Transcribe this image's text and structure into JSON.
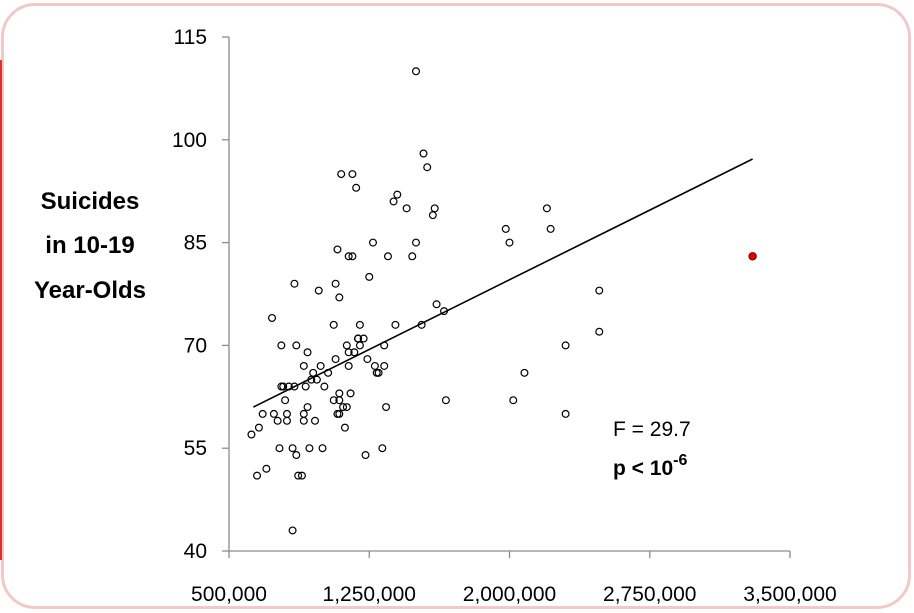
{
  "chart_data": {
    "type": "scatter",
    "ylabel_lines": [
      "Suicides",
      "in 10-19",
      "Year-Olds"
    ],
    "xlabel": "",
    "xlim": [
      500000,
      3500000
    ],
    "ylim": [
      40,
      115
    ],
    "x_ticks": [
      500000,
      1250000,
      2000000,
      2750000,
      3500000
    ],
    "x_tick_labels": [
      "500,000",
      "1,250,000",
      "2,000,000",
      "2,750,000",
      "3,500,000"
    ],
    "y_ticks": [
      40,
      55,
      70,
      85,
      100,
      115
    ],
    "y_tick_labels": [
      "40",
      "55",
      "70",
      "85",
      "100",
      "115"
    ],
    "grid": false,
    "annotation": {
      "f_stat": "F = 29.7",
      "p_prefix": "p < 10",
      "p_exponent": "-6"
    },
    "trendline": {
      "x": [
        630000,
        3300000
      ],
      "y": [
        61,
        97.2
      ]
    },
    "outlier": {
      "x": 3300000,
      "y": 83,
      "color": "#e00000"
    },
    "point_color": "#000000",
    "points": [
      [
        620000,
        57
      ],
      [
        650000,
        51
      ],
      [
        660000,
        58
      ],
      [
        680000,
        60
      ],
      [
        700000,
        52
      ],
      [
        730000,
        74
      ],
      [
        740000,
        60
      ],
      [
        760000,
        59
      ],
      [
        770000,
        55
      ],
      [
        780000,
        64
      ],
      [
        780000,
        70
      ],
      [
        790000,
        64
      ],
      [
        800000,
        62
      ],
      [
        810000,
        60
      ],
      [
        810000,
        59
      ],
      [
        820000,
        64
      ],
      [
        840000,
        55
      ],
      [
        840000,
        43
      ],
      [
        850000,
        79
      ],
      [
        850000,
        64
      ],
      [
        860000,
        70
      ],
      [
        860000,
        54
      ],
      [
        870000,
        51
      ],
      [
        890000,
        51
      ],
      [
        900000,
        60
      ],
      [
        900000,
        59
      ],
      [
        900000,
        67
      ],
      [
        910000,
        64
      ],
      [
        920000,
        69
      ],
      [
        920000,
        61
      ],
      [
        930000,
        55
      ],
      [
        940000,
        65
      ],
      [
        950000,
        66
      ],
      [
        960000,
        59
      ],
      [
        970000,
        65
      ],
      [
        980000,
        78
      ],
      [
        990000,
        67
      ],
      [
        1000000,
        55
      ],
      [
        1010000,
        64
      ],
      [
        1030000,
        66
      ],
      [
        1060000,
        73
      ],
      [
        1060000,
        62
      ],
      [
        1070000,
        68
      ],
      [
        1070000,
        79
      ],
      [
        1080000,
        84
      ],
      [
        1080000,
        60
      ],
      [
        1090000,
        77
      ],
      [
        1090000,
        63
      ],
      [
        1090000,
        62
      ],
      [
        1090000,
        60
      ],
      [
        1100000,
        95
      ],
      [
        1110000,
        61
      ],
      [
        1120000,
        58
      ],
      [
        1130000,
        70
      ],
      [
        1130000,
        61
      ],
      [
        1140000,
        69
      ],
      [
        1140000,
        83
      ],
      [
        1140000,
        67
      ],
      [
        1150000,
        63
      ],
      [
        1160000,
        83
      ],
      [
        1160000,
        95
      ],
      [
        1170000,
        69
      ],
      [
        1180000,
        93
      ],
      [
        1190000,
        71
      ],
      [
        1190000,
        71
      ],
      [
        1200000,
        73
      ],
      [
        1200000,
        70
      ],
      [
        1220000,
        71
      ],
      [
        1230000,
        54
      ],
      [
        1240000,
        68
      ],
      [
        1250000,
        80
      ],
      [
        1270000,
        85
      ],
      [
        1280000,
        67
      ],
      [
        1290000,
        66
      ],
      [
        1300000,
        66
      ],
      [
        1320000,
        55
      ],
      [
        1330000,
        67
      ],
      [
        1330000,
        70
      ],
      [
        1340000,
        61
      ],
      [
        1350000,
        83
      ],
      [
        1380000,
        91
      ],
      [
        1390000,
        73
      ],
      [
        1400000,
        92
      ],
      [
        1450000,
        90
      ],
      [
        1480000,
        83
      ],
      [
        1500000,
        85
      ],
      [
        1500000,
        110
      ],
      [
        1530000,
        73
      ],
      [
        1540000,
        98
      ],
      [
        1560000,
        96
      ],
      [
        1590000,
        89
      ],
      [
        1600000,
        90
      ],
      [
        1610000,
        76
      ],
      [
        1650000,
        75
      ],
      [
        1660000,
        62
      ],
      [
        1980000,
        87
      ],
      [
        2000000,
        85
      ],
      [
        2020000,
        62
      ],
      [
        2080000,
        66
      ],
      [
        2200000,
        90
      ],
      [
        2220000,
        87
      ],
      [
        2300000,
        70
      ],
      [
        2300000,
        60
      ],
      [
        2480000,
        78
      ],
      [
        2480000,
        72
      ]
    ]
  }
}
